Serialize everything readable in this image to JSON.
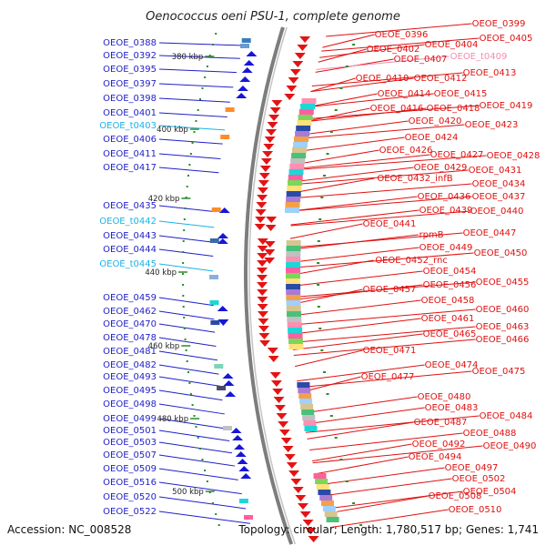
{
  "title": "Oenococcus oeni PSU-1, complete genome",
  "accession": "Accession: NC_008528",
  "summary": "Topology: circular; Length: 1,780,517 bp; Genes: 1,741",
  "colors": {
    "left_gene": "#1f1fc8",
    "left_trna": "#1ab3e6",
    "right_gene": "#e01010",
    "right_trna": "#f28cb0",
    "backbone": "#8a8a8a"
  },
  "kbp_marks": [
    "380 kbp",
    "400 kbp",
    "420 kbp",
    "440 kbp",
    "460 kbp",
    "480 kbp",
    "500 kbp"
  ],
  "left_labels": [
    {
      "text": "OEOE_0388",
      "kind": "gene"
    },
    {
      "text": "OEOE_0392",
      "kind": "gene"
    },
    {
      "text": "OEOE_0395",
      "kind": "gene"
    },
    {
      "text": "OEOE_0397",
      "kind": "gene"
    },
    {
      "text": "OEOE_0398",
      "kind": "gene"
    },
    {
      "text": "OEOE_0401",
      "kind": "gene"
    },
    {
      "text": "OEOE_t0403",
      "kind": "trna"
    },
    {
      "text": "OEOE_0406",
      "kind": "gene"
    },
    {
      "text": "OEOE_0411",
      "kind": "gene"
    },
    {
      "text": "OEOE_0417",
      "kind": "gene"
    },
    {
      "text": "OEOE_0435",
      "kind": "gene"
    },
    {
      "text": "OEOE_t0442",
      "kind": "trna"
    },
    {
      "text": "OEOE_0443",
      "kind": "gene"
    },
    {
      "text": "OEOE_0444",
      "kind": "gene"
    },
    {
      "text": "OEOE_t0445",
      "kind": "trna"
    },
    {
      "text": "OEOE_0459",
      "kind": "gene"
    },
    {
      "text": "OEOE_0462",
      "kind": "gene"
    },
    {
      "text": "OEOE_0470",
      "kind": "gene"
    },
    {
      "text": "OEOE_0478",
      "kind": "gene"
    },
    {
      "text": "OEOE_0481",
      "kind": "gene"
    },
    {
      "text": "OEOE_0482",
      "kind": "gene"
    },
    {
      "text": "OEOE_0493",
      "kind": "gene"
    },
    {
      "text": "OEOE_0495",
      "kind": "gene"
    },
    {
      "text": "OEOE_0498",
      "kind": "gene"
    },
    {
      "text": "OEOE_0499",
      "kind": "gene"
    },
    {
      "text": "OEOE_0501",
      "kind": "gene"
    },
    {
      "text": "OEOE_0503",
      "kind": "gene"
    },
    {
      "text": "OEOE_0507",
      "kind": "gene"
    },
    {
      "text": "OEOE_0509",
      "kind": "gene"
    },
    {
      "text": "OEOE_0516",
      "kind": "gene"
    },
    {
      "text": "OEOE_0520",
      "kind": "gene"
    },
    {
      "text": "OEOE_0522",
      "kind": "gene"
    }
  ],
  "right_labels": [
    {
      "text": "OEOE_0399",
      "kind": "gene"
    },
    {
      "text": "OEOE_0396",
      "kind": "gene"
    },
    {
      "text": "OEOE_0405",
      "kind": "gene"
    },
    {
      "text": "OEOE_0404",
      "kind": "gene"
    },
    {
      "text": "OEOE_0402",
      "kind": "gene"
    },
    {
      "text": "OEOE_0407",
      "kind": "gene"
    },
    {
      "text": "OEOE_t0409",
      "kind": "trna"
    },
    {
      "text": "OEOE_0413",
      "kind": "gene"
    },
    {
      "text": "OEOE_0410",
      "kind": "gene"
    },
    {
      "text": "OEOE_0412",
      "kind": "gene"
    },
    {
      "text": "OEOE_0414",
      "kind": "gene"
    },
    {
      "text": "OEOE_0415",
      "kind": "gene"
    },
    {
      "text": "OEOE_0419",
      "kind": "gene"
    },
    {
      "text": "OEOE_0416",
      "kind": "gene"
    },
    {
      "text": "OEOE_0418",
      "kind": "gene"
    },
    {
      "text": "OEOE_0420",
      "kind": "gene"
    },
    {
      "text": "OEOE_0423",
      "kind": "gene"
    },
    {
      "text": "OEOE_0424",
      "kind": "gene"
    },
    {
      "text": "OEOE_0426",
      "kind": "gene"
    },
    {
      "text": "OEOE_0427",
      "kind": "gene"
    },
    {
      "text": "OEOE_0428",
      "kind": "gene"
    },
    {
      "text": "OEOE_0429",
      "kind": "gene"
    },
    {
      "text": "OEOE_0431",
      "kind": "gene"
    },
    {
      "text": "OEOE_0432_infB",
      "kind": "gene"
    },
    {
      "text": "OEOE_0434",
      "kind": "gene"
    },
    {
      "text": "OEOE_0436",
      "kind": "gene"
    },
    {
      "text": "OEOE_0437",
      "kind": "gene"
    },
    {
      "text": "OEOE_0439",
      "kind": "gene"
    },
    {
      "text": "OEOE_0440",
      "kind": "gene"
    },
    {
      "text": "OEOE_0441",
      "kind": "gene"
    },
    {
      "text": "rpmB",
      "kind": "gene"
    },
    {
      "text": "OEOE_0447",
      "kind": "gene"
    },
    {
      "text": "OEOE_0449",
      "kind": "gene"
    },
    {
      "text": "OEOE_0450",
      "kind": "gene"
    },
    {
      "text": "OEOE_0452_rnc",
      "kind": "gene"
    },
    {
      "text": "OEOE_0454",
      "kind": "gene"
    },
    {
      "text": "OEOE_0455",
      "kind": "gene"
    },
    {
      "text": "OEOE_0456",
      "kind": "gene"
    },
    {
      "text": "OEOE_0457",
      "kind": "gene"
    },
    {
      "text": "OEOE_0458",
      "kind": "gene"
    },
    {
      "text": "OEOE_0460",
      "kind": "gene"
    },
    {
      "text": "OEOE_0461",
      "kind": "gene"
    },
    {
      "text": "OEOE_0463",
      "kind": "gene"
    },
    {
      "text": "OEOE_0465",
      "kind": "gene"
    },
    {
      "text": "OEOE_0466",
      "kind": "gene"
    },
    {
      "text": "OEOE_0471",
      "kind": "gene"
    },
    {
      "text": "OEOE_0474",
      "kind": "gene"
    },
    {
      "text": "OEOE_0475",
      "kind": "gene"
    },
    {
      "text": "OEOE_0477",
      "kind": "gene"
    },
    {
      "text": "OEOE_0480",
      "kind": "gene"
    },
    {
      "text": "OEOE_0483",
      "kind": "gene"
    },
    {
      "text": "OEOE_0484",
      "kind": "gene"
    },
    {
      "text": "OEOE_0487",
      "kind": "gene"
    },
    {
      "text": "OEOE_0488",
      "kind": "gene"
    },
    {
      "text": "OEOE_0490",
      "kind": "gene"
    },
    {
      "text": "OEOE_0492",
      "kind": "gene"
    },
    {
      "text": "OEOE_0494",
      "kind": "gene"
    },
    {
      "text": "OEOE_0497",
      "kind": "gene"
    },
    {
      "text": "OEOE_0502",
      "kind": "gene"
    },
    {
      "text": "OEOE_0504",
      "kind": "gene"
    },
    {
      "text": "OEOE_0508",
      "kind": "gene"
    },
    {
      "text": "OEOE_0510",
      "kind": "gene"
    }
  ]
}
